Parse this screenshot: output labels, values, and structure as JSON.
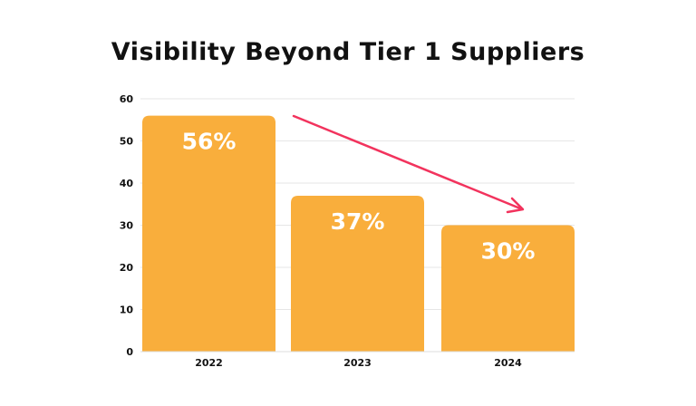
{
  "chart_data": {
    "type": "bar",
    "title": "Visibility Beyond Tier 1  Suppliers",
    "categories": [
      "2022",
      "2023",
      "2024"
    ],
    "values": [
      56,
      37,
      30
    ],
    "data_labels": [
      "56%",
      "37%",
      "30%"
    ],
    "xlabel": "",
    "ylabel": "",
    "ylim": [
      0,
      60
    ],
    "yticks": [
      0,
      10,
      20,
      30,
      40,
      50,
      60
    ],
    "grid": true,
    "annotations": [
      {
        "type": "arrow",
        "from_category": "2022",
        "to_category": "2024",
        "meaning": "downward trend"
      }
    ],
    "colors": {
      "bar": "#F9AE3C",
      "label": "#FFFFFF",
      "arrow": "#F2335D",
      "grid": "#E6E6E6"
    }
  }
}
